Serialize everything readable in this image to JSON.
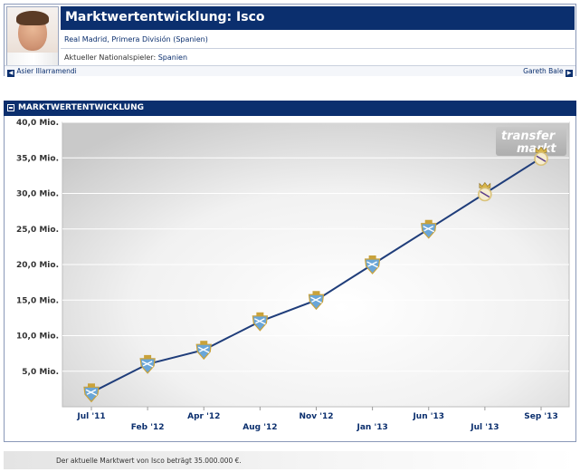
{
  "header": {
    "title": "Marktwertentwicklung: Isco",
    "club_line": "Real Madrid, Primera División (Spanien)",
    "nationality_label": "Aktueller Nationalspieler:",
    "nationality_value": "Spanien",
    "prev_player": "Asier Illarramendi",
    "next_player": "Gareth Bale",
    "prev_arrow": "◀",
    "next_arrow": "▶"
  },
  "section": {
    "title": "MARKTWERTENTWICKLUNG"
  },
  "watermark": {
    "line1": "transfer",
    "line2": "markt"
  },
  "footer": {
    "text": "Der aktuelle Marktwert von Isco beträgt 35.000.000 €."
  },
  "colors": {
    "navy": "#0b2f6e",
    "line": "#1f3d7a",
    "malaga": "#6aa6d8",
    "realmadrid": "#d9c27a"
  },
  "chart_data": {
    "type": "line",
    "title": "",
    "xlabel": "",
    "ylabel": "",
    "ylim": [
      0,
      40
    ],
    "y_ticks": [
      {
        "value": 5,
        "label": "5,0 Mio."
      },
      {
        "value": 10,
        "label": "10,0 Mio."
      },
      {
        "value": 15,
        "label": "15,0 Mio."
      },
      {
        "value": 20,
        "label": "20,0 Mio."
      },
      {
        "value": 25,
        "label": "25,0 Mio."
      },
      {
        "value": 30,
        "label": "30,0 Mio."
      },
      {
        "value": 35,
        "label": "35,0 Mio."
      },
      {
        "value": 40,
        "label": "40,0 Mio."
      }
    ],
    "categories": [
      "Jul '11",
      "Feb '12",
      "Apr '12",
      "Aug '12",
      "Nov '12",
      "Jan '13",
      "Jun '13",
      "Jul '13",
      "Sep '13"
    ],
    "series": [
      {
        "values": [
          2,
          6,
          8,
          12,
          15,
          20,
          25,
          30,
          35
        ],
        "clubs": [
          "malaga",
          "malaga",
          "malaga",
          "malaga",
          "malaga",
          "malaga",
          "malaga",
          "realmadrid",
          "realmadrid"
        ]
      }
    ],
    "grid": true,
    "legend": "none"
  }
}
